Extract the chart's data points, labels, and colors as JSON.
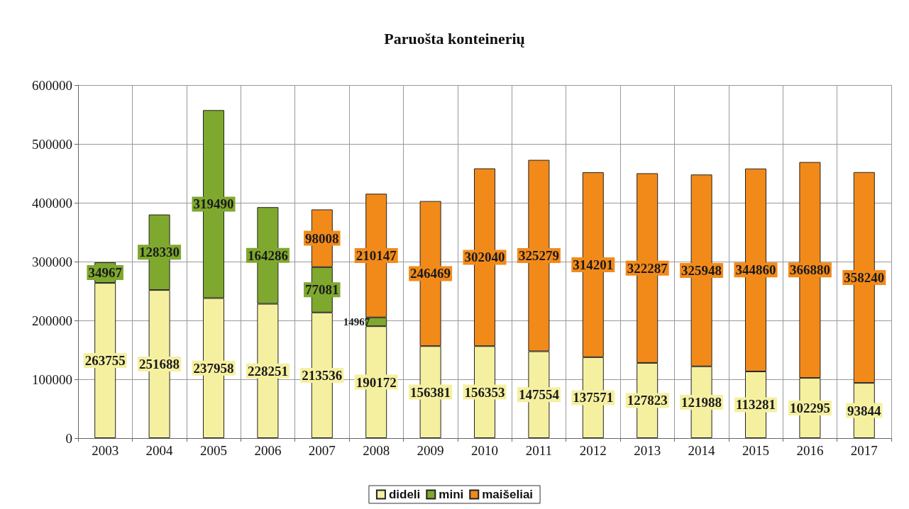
{
  "chart_data": {
    "type": "bar",
    "title": "Paruošta konteinerių",
    "stacked": true,
    "data_labels": true,
    "grid": true,
    "legend": "bottom",
    "categories": [
      "2003",
      "2004",
      "2005",
      "2006",
      "2007",
      "2008",
      "2009",
      "2010",
      "2011",
      "2012",
      "2013",
      "2014",
      "2015",
      "2016",
      "2017"
    ],
    "ylim": [
      0,
      600000
    ],
    "yticks": [
      0,
      100000,
      200000,
      300000,
      400000,
      500000,
      600000
    ],
    "series": [
      {
        "name": "dideli",
        "color": "#f5f0a0",
        "values": [
          263755,
          251688,
          237958,
          228251,
          213536,
          190172,
          156381,
          156353,
          147554,
          137571,
          127823,
          121988,
          113281,
          102295,
          93844
        ]
      },
      {
        "name": "mini",
        "color": "#7fa82e",
        "values": [
          34967,
          128330,
          319490,
          164286,
          77081,
          14967,
          null,
          null,
          null,
          null,
          null,
          null,
          null,
          null,
          null
        ]
      },
      {
        "name": "maišeliai",
        "color": "#f28a1a",
        "values": [
          null,
          null,
          null,
          null,
          98008,
          210147,
          246469,
          302040,
          325279,
          314201,
          322287,
          325948,
          344860,
          366880,
          358240
        ]
      }
    ]
  }
}
